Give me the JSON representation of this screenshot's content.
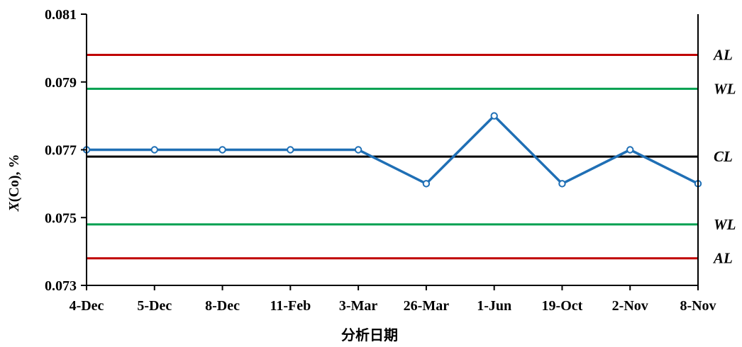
{
  "chart_data": {
    "type": "line",
    "categories": [
      "4-Dec",
      "5-Dec",
      "8-Dec",
      "11-Feb",
      "3-Mar",
      "26-Mar",
      "1-Jun",
      "19-Oct",
      "2-Nov",
      "8-Nov"
    ],
    "series": [
      {
        "values": [
          0.077,
          0.077,
          0.077,
          0.077,
          0.077,
          0.076,
          0.078,
          0.076,
          0.077,
          0.076
        ],
        "color": "#1f6fb5"
      }
    ],
    "yticks": [
      "0.073",
      "0.075",
      "0.077",
      "0.079",
      "0.081"
    ],
    "ylim": [
      0.073,
      0.081
    ],
    "ylabel_italic": "X",
    "ylabel_rest": "(Co), %",
    "xlabel": "分析日期",
    "limits": [
      {
        "label": "AL",
        "value": 0.0798,
        "color": "#c00000"
      },
      {
        "label": "WL",
        "value": 0.0788,
        "color": "#00a050"
      },
      {
        "label": "CL",
        "value": 0.0768,
        "color": "#000000"
      },
      {
        "label": "WL",
        "value": 0.0748,
        "color": "#00a050"
      },
      {
        "label": "AL",
        "value": 0.0738,
        "color": "#c00000"
      }
    ],
    "grid": false,
    "legend": "none"
  }
}
